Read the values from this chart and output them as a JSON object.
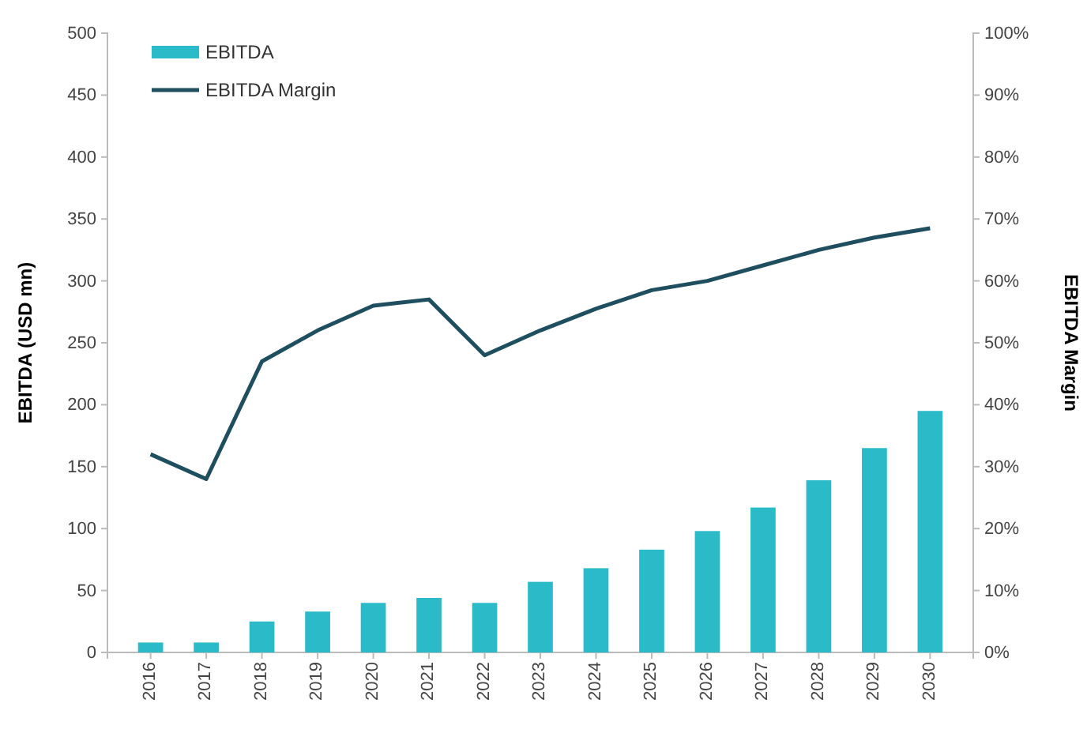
{
  "chart_data": {
    "type": "bar",
    "categories": [
      "2016",
      "2017",
      "2018",
      "2019",
      "2020",
      "2021",
      "2022",
      "2023",
      "2024",
      "2025",
      "2026",
      "2027",
      "2028",
      "2029",
      "2030"
    ],
    "ylabel": "EBITDA (USD mn)",
    "y2label": "EBITDA Margin",
    "ylim": [
      0,
      500
    ],
    "yticks": [
      0,
      50,
      100,
      150,
      200,
      250,
      300,
      350,
      400,
      450,
      500
    ],
    "y2lim": [
      0,
      100
    ],
    "y2ticks": [
      {
        "value": 0,
        "label": "0%"
      },
      {
        "value": 10,
        "label": "10%"
      },
      {
        "value": 20,
        "label": "20%"
      },
      {
        "value": 30,
        "label": "30%"
      },
      {
        "value": 40,
        "label": "40%"
      },
      {
        "value": 50,
        "label": "50%"
      },
      {
        "value": 60,
        "label": "60%"
      },
      {
        "value": 70,
        "label": "70%"
      },
      {
        "value": 80,
        "label": "80%"
      },
      {
        "value": 90,
        "label": "90%"
      },
      {
        "value": 100,
        "label": "100%"
      }
    ],
    "legend": "top left",
    "grid": false,
    "series": [
      {
        "name": "EBITDA",
        "color": "#2bbbc8",
        "values": [
          8,
          8,
          25,
          33,
          40,
          44,
          40,
          57,
          68,
          83,
          98,
          117,
          139,
          165,
          195
        ]
      },
      {
        "name": "EBITDA Margin",
        "type": "line",
        "axis": "y2",
        "color": "#1f4e5f",
        "values": [
          32,
          28,
          47,
          52,
          56,
          57,
          48,
          52,
          55.5,
          58.5,
          60,
          62.5,
          65,
          67,
          68.5
        ]
      }
    ]
  }
}
